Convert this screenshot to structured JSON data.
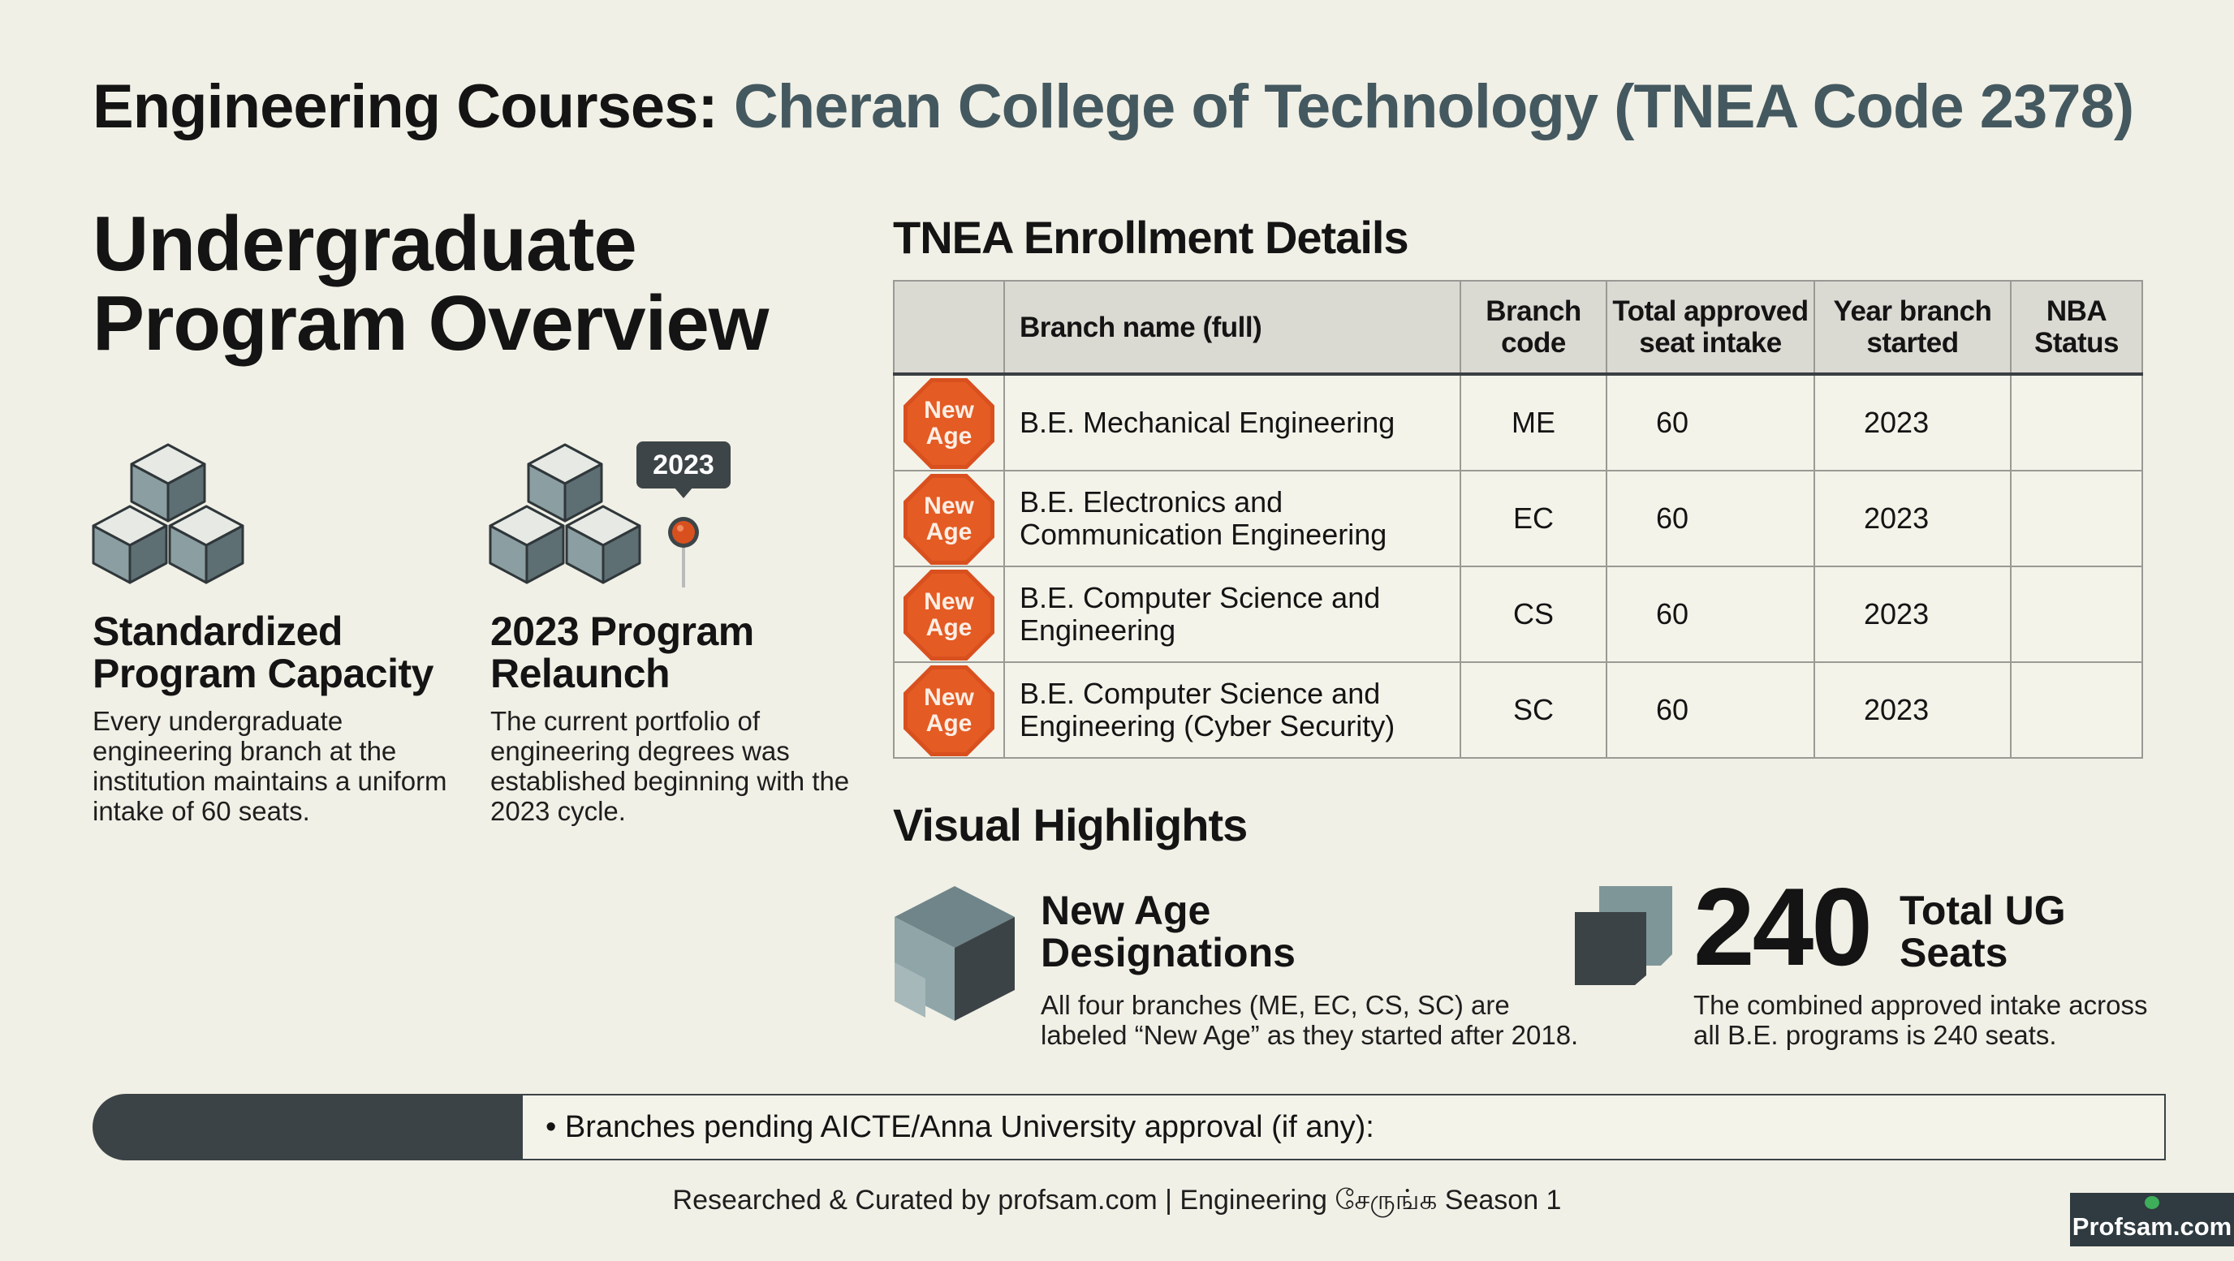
{
  "header": {
    "title_prefix": "Engineering Courses:",
    "title_accent": "Cheran College of Technology (TNEA Code 2378)"
  },
  "overview": {
    "heading_line1": "Undergraduate",
    "heading_line2": "Program Overview",
    "features": [
      {
        "icon": "cubes-icon",
        "title_line1": "Standardized",
        "title_line2": "Program Capacity",
        "body": [
          "Every undergraduate",
          "engineering branch at the",
          "institution maintains a uniform",
          "intake of 60 seats."
        ]
      },
      {
        "icon": "cubes-pin-icon",
        "pin_label": "2023",
        "title_line1": "2023 Program",
        "title_line2": "Relaunch",
        "body": [
          "The current portfolio of",
          "engineering degrees was",
          "established beginning with the",
          "2023 cycle."
        ]
      }
    ]
  },
  "enrollment": {
    "heading": "TNEA Enrollment Details",
    "columns": {
      "badge": "",
      "name": "Branch name (full)",
      "code_l1": "Branch",
      "code_l2": "code",
      "seats_l1": "Total approved",
      "seats_l2": "seat intake",
      "year_l1": "Year branch",
      "year_l2": "started",
      "nba_l1": "NBA",
      "nba_l2": "Status"
    },
    "rows": [
      {
        "badge_l1": "New",
        "badge_l2": "Age",
        "name_l1": "B.E. Mechanical Engineering",
        "name_l2": "",
        "code": "ME",
        "seats": "60",
        "year": "2023",
        "nba": ""
      },
      {
        "badge_l1": "New",
        "badge_l2": "Age",
        "name_l1": "B.E. Electronics and",
        "name_l2": "Communication Engineering",
        "code": "EC",
        "seats": "60",
        "year": "2023",
        "nba": ""
      },
      {
        "badge_l1": "New",
        "badge_l2": "Age",
        "name_l1": "B.E. Computer Science and",
        "name_l2": "Engineering",
        "code": "CS",
        "seats": "60",
        "year": "2023",
        "nba": ""
      },
      {
        "badge_l1": "New",
        "badge_l2": "Age",
        "name_l1": "B.E. Computer Science and",
        "name_l2": "Engineering (Cyber Security)",
        "code": "SC",
        "seats": "60",
        "year": "2023",
        "nba": ""
      }
    ]
  },
  "highlights": {
    "heading": "Visual Highlights",
    "new_age": {
      "icon": "folded-cube-icon",
      "title_line1": "New Age",
      "title_line2": "Designations",
      "body": [
        "All four branches (ME, EC, CS, SC) are",
        "labeled “New Age” as they started after 2018."
      ]
    },
    "total": {
      "icon": "stacked-squares-icon",
      "value": "240",
      "label_line1": "Total UG",
      "label_line2": "Seats",
      "body": [
        "The combined approved intake across",
        "all B.E. programs is 240 seats."
      ]
    }
  },
  "pending": {
    "text": "•  Branches pending AICTE/Anna University approval (if any):"
  },
  "footer": {
    "text": "Researched & Curated by profsam.com | Engineering சேருங்க Season 1",
    "logo": "Profsam.com"
  },
  "colors": {
    "background": "#f1f0e6",
    "accent_title": "#44585f",
    "badge": "#e45b24",
    "dark": "#3b4346"
  }
}
